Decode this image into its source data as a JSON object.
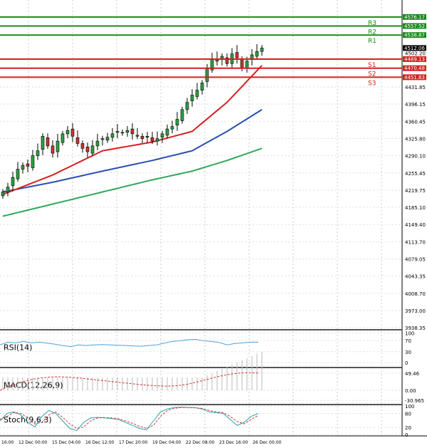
{
  "price_axis": {
    "ticks": [
      "4431.85",
      "4396.15",
      "4360.45",
      "4325.80",
      "4290.10",
      "4255.45",
      "4219.75",
      "4185.10",
      "4149.40",
      "4113.70",
      "4079.05",
      "4043.35",
      "4008.70",
      "3973.00",
      "3938.35"
    ],
    "current": "4512.06",
    "extra": "4502.20"
  },
  "levels": [
    {
      "name": "R3",
      "value": 4576.17,
      "label": "4576.17",
      "color": "#1a8a1a"
    },
    {
      "name": "R2",
      "value": 4557.52,
      "label": "4557.52",
      "color": "#1a8a1a"
    },
    {
      "name": "R1",
      "value": 4538.87,
      "label": "4538.87",
      "color": "#1a8a1a"
    },
    {
      "name": "S1",
      "value": 4489.13,
      "label": "4489.13",
      "color": "#d42020"
    },
    {
      "name": "S2",
      "value": 4470.48,
      "label": "4470.48",
      "color": "#d42020"
    },
    {
      "name": "S3",
      "value": 4451.83,
      "label": "4451.83",
      "color": "#d42020"
    }
  ],
  "closes": [
    4215,
    4225,
    4245,
    4262,
    4270,
    4268,
    4290,
    4300,
    4330,
    4310,
    4295,
    4320,
    4335,
    4342,
    4330,
    4315,
    4305,
    4298,
    4310,
    4320,
    4325,
    4328,
    4335,
    4340,
    4338,
    4342,
    4335,
    4330,
    4325,
    4330,
    4320,
    4325,
    4335,
    4345,
    4350,
    4365,
    4385,
    4400,
    4415,
    4425,
    4440,
    4470,
    4490,
    4485,
    4495,
    4480,
    4500,
    4492,
    4470,
    4485,
    4498,
    4505,
    4512
  ],
  "ma_fast": [
    [
      0,
      4210
    ],
    [
      10,
      4250
    ],
    [
      20,
      4300
    ],
    [
      30,
      4318
    ],
    [
      38,
      4340
    ],
    [
      45,
      4400
    ],
    [
      52,
      4476
    ]
  ],
  "ma_mid": [
    [
      0,
      4215
    ],
    [
      10,
      4235
    ],
    [
      20,
      4258
    ],
    [
      30,
      4280
    ],
    [
      38,
      4300
    ],
    [
      45,
      4340
    ],
    [
      52,
      4385
    ]
  ],
  "ma_slow": [
    [
      0,
      4165
    ],
    [
      10,
      4190
    ],
    [
      20,
      4215
    ],
    [
      30,
      4240
    ],
    [
      38,
      4258
    ],
    [
      45,
      4280
    ],
    [
      52,
      4305
    ]
  ],
  "indicators": {
    "rsi": {
      "label": "RSI(14)",
      "ticks": [
        "100",
        "70",
        "30",
        "0"
      ],
      "values": [
        60,
        68,
        66,
        70,
        66,
        68,
        65,
        62,
        58,
        55,
        60,
        58,
        60,
        61,
        60,
        59,
        58,
        57,
        56,
        58,
        60,
        65,
        70,
        72,
        75,
        76,
        72,
        70,
        67,
        60,
        64,
        66,
        68,
        68
      ]
    },
    "macd": {
      "label": "MACD(12,26,9)",
      "ticks": [
        "49.46",
        "0.00",
        "-30.965"
      ]
    },
    "stoch": {
      "label": "Stoch(9,6,3)",
      "ticks": [
        "100",
        "80",
        "20",
        "0"
      ],
      "main": [
        50,
        75,
        80,
        70,
        45,
        30,
        65,
        85,
        75,
        50,
        25,
        18,
        45,
        60,
        62,
        60,
        58,
        55,
        45,
        35,
        25,
        20,
        50,
        80,
        90,
        95,
        96,
        95,
        94,
        90,
        80,
        78,
        75,
        55,
        35,
        45,
        65,
        75
      ],
      "signal": [
        55,
        65,
        78,
        75,
        60,
        40,
        45,
        70,
        80,
        62,
        40,
        25,
        30,
        50,
        60,
        61,
        60,
        57,
        50,
        42,
        32,
        25,
        35,
        65,
        85,
        92,
        95,
        95,
        94,
        92,
        85,
        80,
        78,
        65,
        48,
        40,
        55,
        68
      ]
    }
  },
  "time_axis": [
    "16:00",
    "12 Dec 00:00",
    "15 Dec 04:00",
    "16 Dec 12:00",
    "17 Dec 20:00",
    "19 Dec 04:00",
    "22 Dec 08:00",
    "23 Dec 16:00",
    "26 Dec 00:00"
  ]
}
